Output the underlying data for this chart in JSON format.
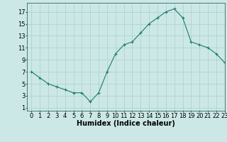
{
  "x": [
    0,
    1,
    2,
    3,
    4,
    5,
    6,
    7,
    8,
    9,
    10,
    11,
    12,
    13,
    14,
    15,
    16,
    17,
    18,
    19,
    20,
    21,
    22,
    23
  ],
  "y": [
    7.0,
    6.0,
    5.0,
    4.5,
    4.0,
    3.5,
    3.5,
    2.0,
    3.5,
    7.0,
    10.0,
    11.5,
    12.0,
    13.5,
    15.0,
    16.0,
    17.0,
    17.5,
    16.0,
    12.0,
    11.5,
    11.0,
    10.0,
    8.5
  ],
  "xlabel": "Humidex (Indice chaleur)",
  "xlim": [
    -0.5,
    23
  ],
  "ylim": [
    0.5,
    18.5
  ],
  "yticks": [
    1,
    3,
    5,
    7,
    9,
    11,
    13,
    15,
    17
  ],
  "xticks": [
    0,
    1,
    2,
    3,
    4,
    5,
    6,
    7,
    8,
    9,
    10,
    11,
    12,
    13,
    14,
    15,
    16,
    17,
    18,
    19,
    20,
    21,
    22,
    23
  ],
  "line_color": "#1a7a6e",
  "marker": "+",
  "bg_color": "#cce8e6",
  "grid_color": "#aacfcc",
  "axis_fontsize": 7,
  "tick_fontsize": 6
}
